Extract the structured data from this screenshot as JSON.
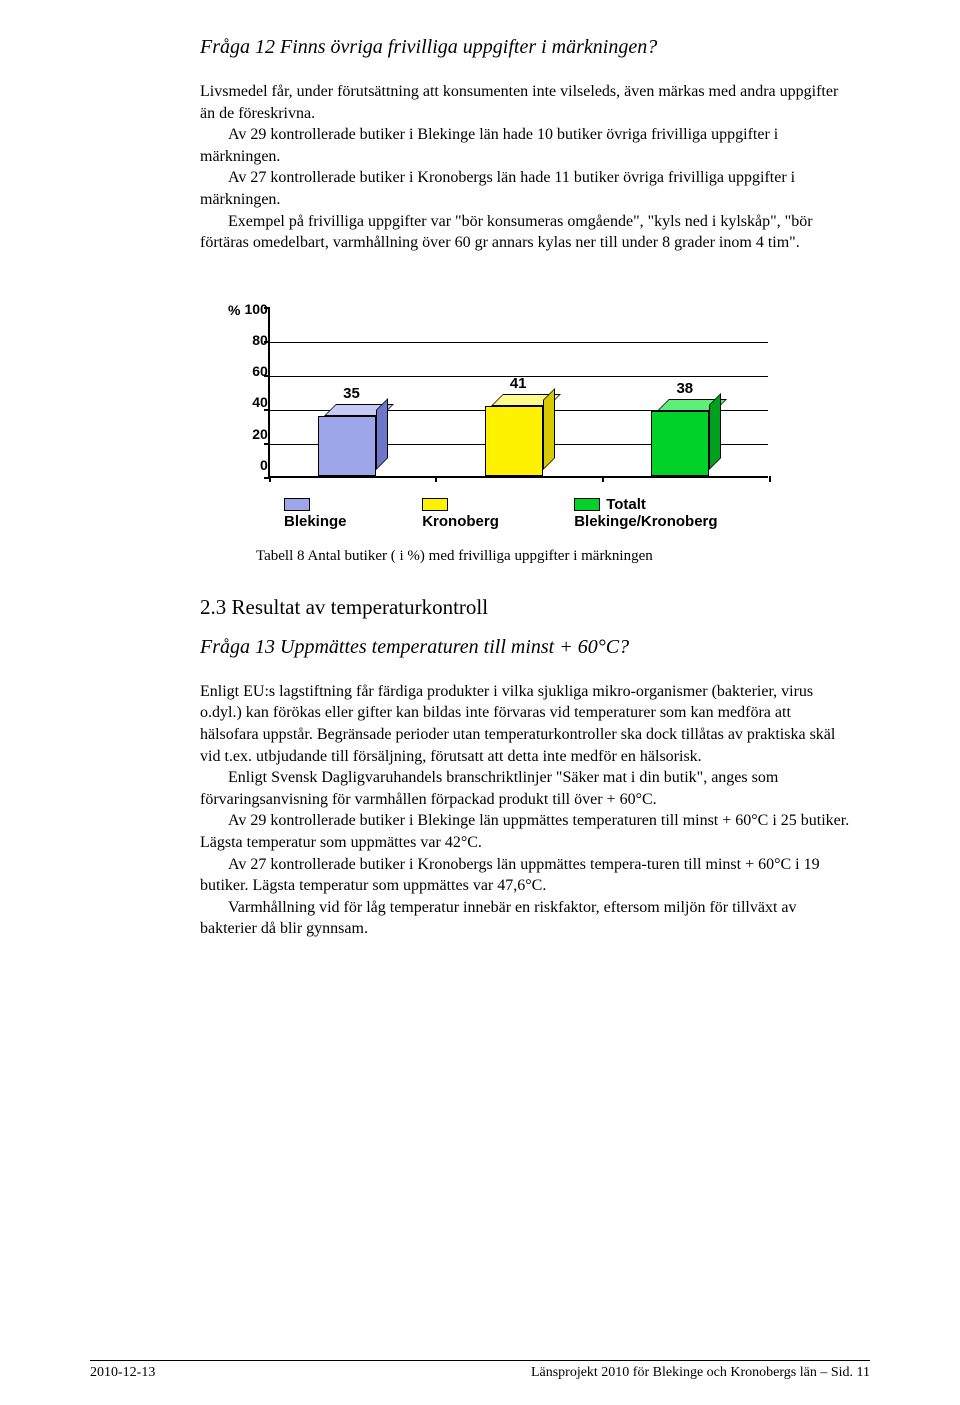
{
  "q12": {
    "title": "Fråga 12 Finns övriga frivilliga uppgifter i märkningen?",
    "p1": "Livsmedel får, under förutsättning att konsumenten inte vilseleds, även märkas med andra uppgifter än de föreskrivna.",
    "p2": "Av 29 kontrollerade butiker i Blekinge län hade 10 butiker övriga frivilliga uppgifter i märkningen.",
    "p3": "Av 27 kontrollerade butiker i Kronobergs län hade 11 butiker övriga frivilliga uppgifter i märkningen.",
    "p4": "Exempel på frivilliga uppgifter var \"bör konsumeras omgående\", \"kyls ned i kylskåp\", \"bör förtäras omedelbart, varmhållning över 60 gr annars kylas ner till under 8 grader inom 4 tim\"."
  },
  "chart": {
    "y_symbol": "%",
    "y_ticks": [
      "100",
      "80",
      "60",
      "40",
      "20",
      "0"
    ],
    "ymax": 100,
    "bars": [
      {
        "value": 35,
        "label": "35",
        "front": "#9da6e8",
        "top": "#c6cbf4",
        "side": "#6d76c8"
      },
      {
        "value": 41,
        "label": "41",
        "front": "#fff200",
        "top": "#fffa8a",
        "side": "#d6ca00"
      },
      {
        "value": 38,
        "label": "38",
        "front": "#00d228",
        "top": "#5cf07a",
        "side": "#00a01e"
      }
    ],
    "legend": [
      {
        "swatch": "#9da6e8",
        "label": "Blekinge"
      },
      {
        "swatch": "#fff200",
        "label": "Kronoberg"
      },
      {
        "swatch": "#00d228",
        "label": "Totalt Blekinge/Kronoberg"
      }
    ],
    "caption": "Tabell 8 Antal butiker ( i %) med frivilliga uppgifter i märkningen"
  },
  "sec23": {
    "heading": "2.3 Resultat av temperaturkontroll",
    "q13_title": "Fråga 13 Uppmättes temperaturen till minst + 60°C?",
    "p1": "Enligt EU:s lagstiftning får färdiga produkter i vilka sjukliga mikro-organismer (bakterier, virus o.dyl.) kan förökas eller gifter kan bildas inte förvaras vid temperaturer som kan medföra att hälsofara uppstår. Begränsade perioder utan temperaturkontroller ska dock tillåtas av praktiska skäl vid t.ex. utbjudande till försäljning, förutsatt att detta inte medför en hälsorisk.",
    "p2": "Enligt Svensk Dagligvaruhandels branschriktlinjer \"Säker mat i din butik\", anges som förvaringsanvisning för varmhållen förpackad produkt till över + 60°C.",
    "p3": "Av 29 kontrollerade butiker i Blekinge län uppmättes temperaturen till minst + 60°C i 25 butiker. Lägsta temperatur som uppmättes var 42°C.",
    "p4": "Av 27 kontrollerade butiker i Kronobergs län uppmättes tempera-turen till minst + 60°C i 19 butiker. Lägsta temperatur som uppmättes var 47,6°C.",
    "p5": "Varmhållning vid för låg temperatur innebär en riskfaktor, eftersom miljön för tillväxt av bakterier då blir gynnsam."
  },
  "footer": {
    "left": "2010-12-13",
    "right": "Länsprojekt 2010 för Blekinge och Kronobergs län – Sid. 11"
  }
}
